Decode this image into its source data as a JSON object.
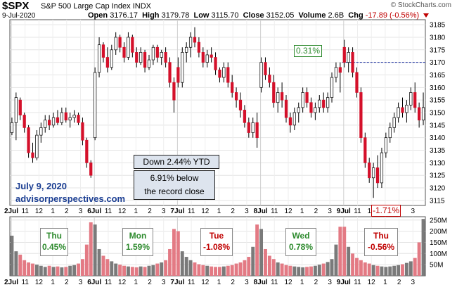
{
  "header": {
    "symbol": "$SPX",
    "description": "S&P 500 Large Cap Index",
    "exchange": "INDX",
    "date": "9-Jul-2020",
    "brand": "© StockCharts.com",
    "open_label": "Open",
    "open": "3176.17",
    "high_label": "High",
    "high": "3179.78",
    "low_label": "Low",
    "low": "3115.70",
    "close_label": "Close",
    "close": "3152.05",
    "volume_label": "Volume",
    "volume": "2.6B",
    "chg_label": "Chg",
    "chg": "-17.89 (-0.56%)"
  },
  "colors": {
    "up": "#ffffff",
    "down": "#d4102a",
    "volume_up": "#7a7a7a",
    "volume_down": "#e37a84",
    "dotted": "#1a2fa0"
  },
  "annotations": {
    "ytd": "Down 2.44% YTD",
    "below_record_1": "6.91% below",
    "below_record_2": "the record close",
    "date_text": "July 9, 2020",
    "site": "advisorperspectives.com",
    "pct_high": "0.31%",
    "pct_low": "-1.71%"
  },
  "days": [
    {
      "name": "Thu",
      "pct": "0.45%",
      "color": "green"
    },
    {
      "name": "Mon",
      "pct": "1.59%",
      "color": "green"
    },
    {
      "name": "Tue",
      "pct": "-1.08%",
      "color": "red"
    },
    {
      "name": "Wed",
      "pct": "0.78%",
      "color": "green"
    },
    {
      "name": "Thu",
      "pct": "-0.56%",
      "color": "red"
    }
  ],
  "chart_data": {
    "type": "candlestick",
    "y_ticks": [
      3115,
      3120,
      3125,
      3130,
      3135,
      3140,
      3145,
      3150,
      3155,
      3160,
      3165,
      3170,
      3175,
      3180,
      3185
    ],
    "ylim": [
      3113,
      3187
    ],
    "volume_ticks": [
      "50M",
      "100M",
      "150M",
      "200M",
      "250M"
    ],
    "volume_tick_values": [
      50,
      100,
      150,
      200,
      250
    ],
    "volume_ylim": [
      0,
      265
    ],
    "x_labels": [
      "2Jul",
      "11",
      "12",
      "1",
      "2",
      "3",
      "6Jul",
      "11",
      "12",
      "1",
      "2",
      "3",
      "7Jul",
      "11",
      "12",
      "1",
      "2",
      "3",
      "8Jul",
      "11",
      "12",
      "1",
      "2",
      "3",
      "9Jul",
      "11",
      "12",
      "1",
      "2",
      "3"
    ],
    "x_labels_bold": [
      "2Jul",
      "6Jul",
      "7Jul",
      "8Jul",
      "9Jul"
    ],
    "dotted_level": 3170,
    "candles": [
      [
        3142,
        3148,
        3141,
        3146
      ],
      [
        3146,
        3158,
        3139,
        3156
      ],
      [
        3155,
        3156,
        3147,
        3149
      ],
      [
        3149,
        3150,
        3142,
        3144
      ],
      [
        3144,
        3145,
        3132,
        3134
      ],
      [
        3134,
        3138,
        3130,
        3132
      ],
      [
        3132,
        3143,
        3131,
        3141
      ],
      [
        3141,
        3146,
        3138,
        3144
      ],
      [
        3144,
        3149,
        3142,
        3147
      ],
      [
        3147,
        3149,
        3143,
        3145
      ],
      [
        3145,
        3150,
        3144,
        3148
      ],
      [
        3148,
        3151,
        3145,
        3146
      ],
      [
        3146,
        3152,
        3145,
        3150
      ],
      [
        3150,
        3152,
        3146,
        3147
      ],
      [
        3147,
        3150,
        3144,
        3148
      ],
      [
        3148,
        3151,
        3146,
        3149
      ],
      [
        3149,
        3150,
        3145,
        3146
      ],
      [
        3146,
        3148,
        3137,
        3139
      ],
      [
        3139,
        3140,
        3128,
        3130
      ],
      [
        3130,
        3131,
        3124,
        3125
      ],
      [
        3140,
        3168,
        3139,
        3166
      ],
      [
        3166,
        3180,
        3164,
        3177
      ],
      [
        3177,
        3178,
        3170,
        3172
      ],
      [
        3172,
        3176,
        3166,
        3168
      ],
      [
        3168,
        3177,
        3167,
        3175
      ],
      [
        3175,
        3182,
        3173,
        3180
      ],
      [
        3180,
        3181,
        3174,
        3176
      ],
      [
        3176,
        3178,
        3170,
        3172
      ],
      [
        3172,
        3182,
        3171,
        3180
      ],
      [
        3180,
        3181,
        3172,
        3174
      ],
      [
        3174,
        3176,
        3168,
        3170
      ],
      [
        3170,
        3176,
        3169,
        3174
      ],
      [
        3174,
        3175,
        3166,
        3168
      ],
      [
        3168,
        3173,
        3167,
        3171
      ],
      [
        3171,
        3177,
        3169,
        3176
      ],
      [
        3176,
        3177,
        3170,
        3172
      ],
      [
        3172,
        3175,
        3169,
        3174
      ],
      [
        3174,
        3176,
        3168,
        3170
      ],
      [
        3170,
        3172,
        3160,
        3162
      ],
      [
        3162,
        3164,
        3150,
        3155
      ],
      [
        3168,
        3172,
        3160,
        3162
      ],
      [
        3162,
        3176,
        3160,
        3174
      ],
      [
        3174,
        3178,
        3170,
        3176
      ],
      [
        3176,
        3182,
        3172,
        3180
      ],
      [
        3180,
        3184,
        3176,
        3178
      ],
      [
        3178,
        3180,
        3172,
        3174
      ],
      [
        3174,
        3176,
        3168,
        3170
      ],
      [
        3170,
        3175,
        3168,
        3173
      ],
      [
        3173,
        3176,
        3170,
        3172
      ],
      [
        3172,
        3174,
        3165,
        3167
      ],
      [
        3167,
        3168,
        3162,
        3164
      ],
      [
        3164,
        3170,
        3162,
        3168
      ],
      [
        3168,
        3170,
        3160,
        3162
      ],
      [
        3162,
        3165,
        3156,
        3158
      ],
      [
        3158,
        3160,
        3152,
        3155
      ],
      [
        3155,
        3158,
        3148,
        3151
      ],
      [
        3151,
        3153,
        3144,
        3146
      ],
      [
        3146,
        3148,
        3140,
        3142
      ],
      [
        3142,
        3148,
        3140,
        3146
      ],
      [
        3146,
        3150,
        3136,
        3140
      ],
      [
        3160,
        3172,
        3158,
        3170
      ],
      [
        3170,
        3172,
        3163,
        3165
      ],
      [
        3165,
        3168,
        3160,
        3162
      ],
      [
        3162,
        3165,
        3152,
        3154
      ],
      [
        3154,
        3160,
        3150,
        3158
      ],
      [
        3158,
        3162,
        3152,
        3155
      ],
      [
        3155,
        3157,
        3146,
        3148
      ],
      [
        3148,
        3150,
        3142,
        3145
      ],
      [
        3145,
        3152,
        3143,
        3150
      ],
      [
        3150,
        3154,
        3146,
        3152
      ],
      [
        3152,
        3160,
        3150,
        3158
      ],
      [
        3158,
        3160,
        3152,
        3154
      ],
      [
        3154,
        3156,
        3148,
        3150
      ],
      [
        3150,
        3154,
        3147,
        3152
      ],
      [
        3152,
        3157,
        3150,
        3155
      ],
      [
        3155,
        3158,
        3150,
        3152
      ],
      [
        3152,
        3158,
        3150,
        3156
      ],
      [
        3156,
        3166,
        3154,
        3164
      ],
      [
        3164,
        3170,
        3162,
        3168
      ],
      [
        3168,
        3170,
        3158,
        3166
      ],
      [
        3176,
        3179,
        3168,
        3170
      ],
      [
        3170,
        3176,
        3166,
        3174
      ],
      [
        3174,
        3176,
        3164,
        3166
      ],
      [
        3166,
        3168,
        3156,
        3158
      ],
      [
        3158,
        3160,
        3138,
        3140
      ],
      [
        3140,
        3142,
        3128,
        3130
      ],
      [
        3130,
        3132,
        3122,
        3124
      ],
      [
        3124,
        3130,
        3116,
        3128
      ],
      [
        3128,
        3133,
        3120,
        3122
      ],
      [
        3122,
        3136,
        3120,
        3134
      ],
      [
        3134,
        3142,
        3132,
        3140
      ],
      [
        3140,
        3146,
        3138,
        3144
      ],
      [
        3144,
        3150,
        3142,
        3148
      ],
      [
        3148,
        3154,
        3146,
        3152
      ],
      [
        3152,
        3156,
        3148,
        3150
      ],
      [
        3150,
        3155,
        3146,
        3153
      ],
      [
        3153,
        3160,
        3151,
        3158
      ],
      [
        3158,
        3162,
        3150,
        3152
      ],
      [
        3152,
        3154,
        3144,
        3147
      ],
      [
        3147,
        3158,
        3145,
        3152
      ]
    ],
    "volume": [
      180,
      110,
      95,
      70,
      60,
      55,
      50,
      45,
      40,
      45,
      40,
      42,
      38,
      40,
      45,
      48,
      55,
      75,
      140,
      240,
      230,
      120,
      90,
      75,
      65,
      55,
      50,
      45,
      42,
      40,
      38,
      42,
      40,
      45,
      48,
      55,
      60,
      70,
      120,
      210,
      200,
      110,
      85,
      70,
      60,
      52,
      48,
      45,
      42,
      40,
      40,
      42,
      45,
      48,
      55,
      60,
      70,
      85,
      130,
      230,
      210,
      120,
      90,
      75,
      60,
      55,
      48,
      45,
      42,
      40,
      38,
      40,
      42,
      45,
      50,
      55,
      62,
      75,
      140,
      220,
      220,
      130,
      100,
      80,
      70,
      60,
      55,
      48,
      45,
      42,
      40,
      42,
      45,
      48,
      52,
      58,
      65,
      80,
      150,
      255
    ]
  }
}
